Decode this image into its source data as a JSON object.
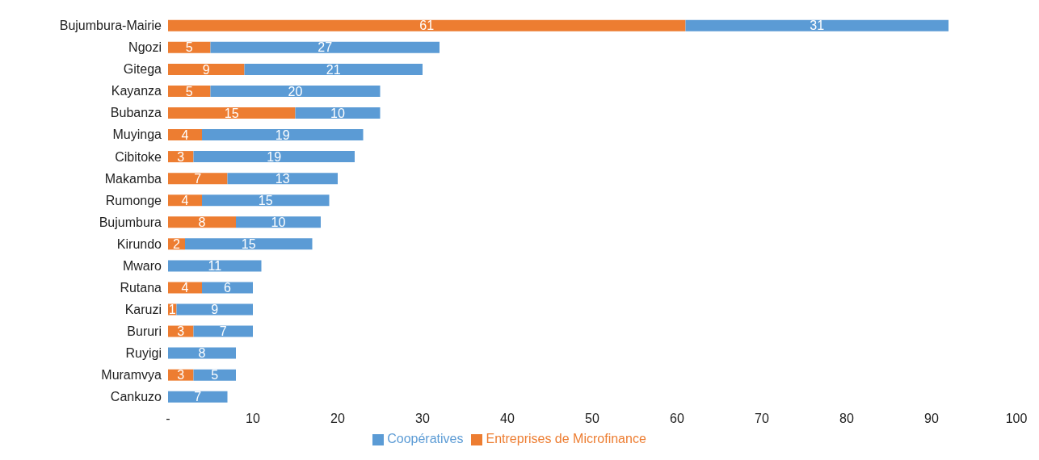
{
  "chart_data": {
    "type": "bar",
    "orientation": "horizontal",
    "stacked": true,
    "data_labels": true,
    "grid": false,
    "legend": "bottom",
    "categories": [
      "Bujumbura-Mairie",
      "Ngozi",
      "Gitega",
      "Kayanza",
      "Bubanza",
      "Muyinga",
      "Cibitoke",
      "Makamba",
      "Rumonge",
      "Bujumbura",
      "Kirundo",
      "Mwaro",
      "Rutana",
      "Karuzi",
      "Bururi",
      "Ruyigi",
      "Muramvya",
      "Cankuzo"
    ],
    "series": [
      {
        "name": "Entreprises de Microfinance",
        "color": "#ed7d31",
        "values": [
          61,
          5,
          9,
          5,
          15,
          4,
          3,
          7,
          4,
          8,
          2,
          null,
          4,
          1,
          3,
          null,
          3,
          null
        ]
      },
      {
        "name": "Coopératives",
        "color": "#5b9bd5",
        "values": [
          31,
          27,
          21,
          20,
          10,
          19,
          19,
          13,
          15,
          10,
          15,
          11,
          6,
          9,
          7,
          8,
          5,
          7
        ]
      }
    ],
    "xlim": [
      0,
      100
    ],
    "xticks": [
      {
        "value": 0,
        "label": "-"
      },
      10,
      20,
      30,
      40,
      50,
      60,
      70,
      80,
      90,
      100
    ]
  }
}
